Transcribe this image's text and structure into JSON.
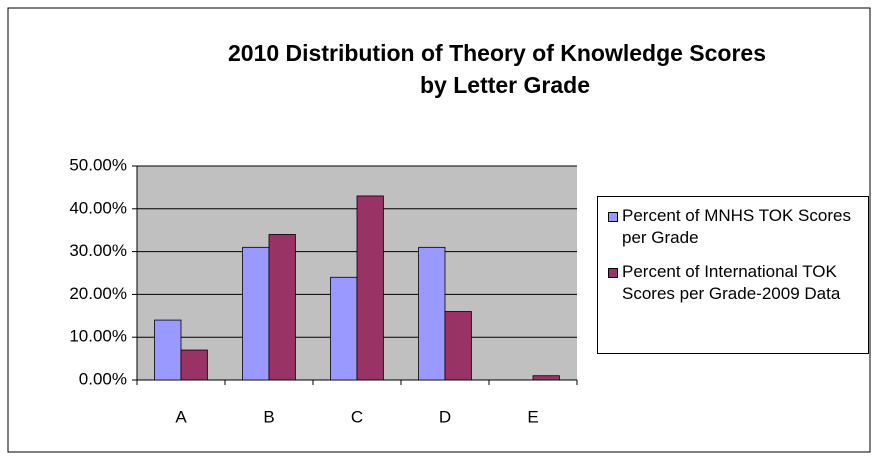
{
  "chart_data": {
    "type": "bar",
    "title": [
      "2010 Distribution of Theory of Knowledge Scores",
      "by Letter Grade"
    ],
    "categories": [
      "A",
      "B",
      "C",
      "D",
      "E"
    ],
    "series": [
      {
        "name": "Percent of MNHS TOK Scores per Grade",
        "color": "#9999ff",
        "values": [
          14,
          31,
          24,
          31,
          0
        ]
      },
      {
        "name": "Percent of International TOK Scores per Grade-2009 Data",
        "color": "#993366",
        "values": [
          7,
          34,
          43,
          16,
          1
        ]
      }
    ],
    "ylim": [
      0,
      50
    ],
    "yticks": [
      {
        "value": 0,
        "label": "0.00%"
      },
      {
        "value": 10,
        "label": "10.00%"
      },
      {
        "value": 20,
        "label": "20.00%"
      },
      {
        "value": 30,
        "label": "30.00%"
      },
      {
        "value": 40,
        "label": "40.00%"
      },
      {
        "value": 50,
        "label": "50.00%"
      }
    ],
    "grid": true,
    "legend": "right"
  }
}
